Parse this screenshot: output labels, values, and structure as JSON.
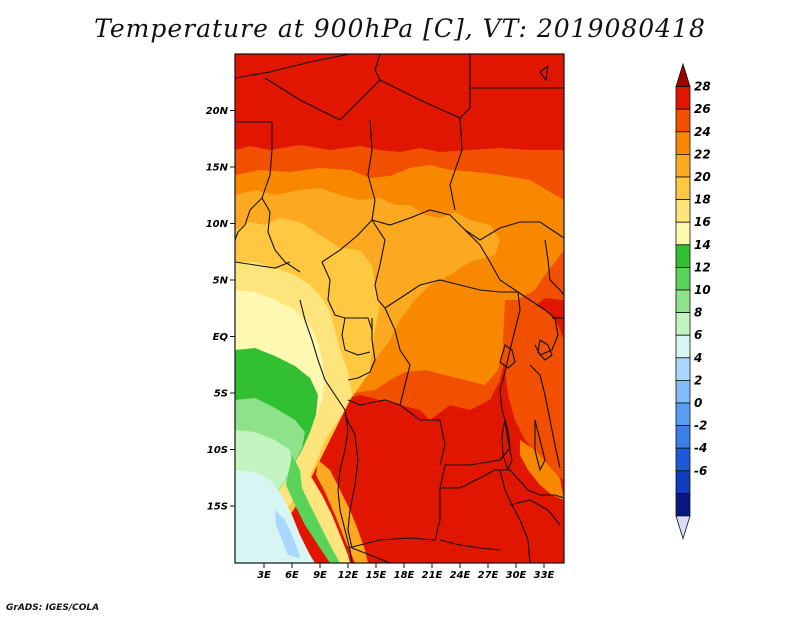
{
  "title": "Temperature at 900hPa [C], VT: 2019080418",
  "credit": "GrADS: IGES/COLA",
  "lat_axis": [
    "20N",
    "15N",
    "10N",
    "5N",
    "EQ",
    "5S",
    "10S",
    "15S"
  ],
  "lon_axis": [
    "3E",
    "6E",
    "9E",
    "12E",
    "15E",
    "18E",
    "21E",
    "24E",
    "27E",
    "30E",
    "33E"
  ],
  "colorbar": {
    "labels": [
      "28",
      "26",
      "24",
      "22",
      "20",
      "18",
      "16",
      "14",
      "12",
      "10",
      "8",
      "6",
      "4",
      "2",
      "0",
      "-2",
      "-4",
      "-6"
    ],
    "colors": [
      "#a00000",
      "#e11600",
      "#f05000",
      "#f88800",
      "#fca820",
      "#ffc840",
      "#fde47c",
      "#fff8b0",
      "#32c032",
      "#5ad35a",
      "#8ee28a",
      "#c3f4c0",
      "#d7f5f3",
      "#aad7ff",
      "#80bcf8",
      "#5a9ef3",
      "#3c7ee8",
      "#1e5ad8",
      "#103cc0",
      "#061880",
      "#dcdcff"
    ]
  }
}
